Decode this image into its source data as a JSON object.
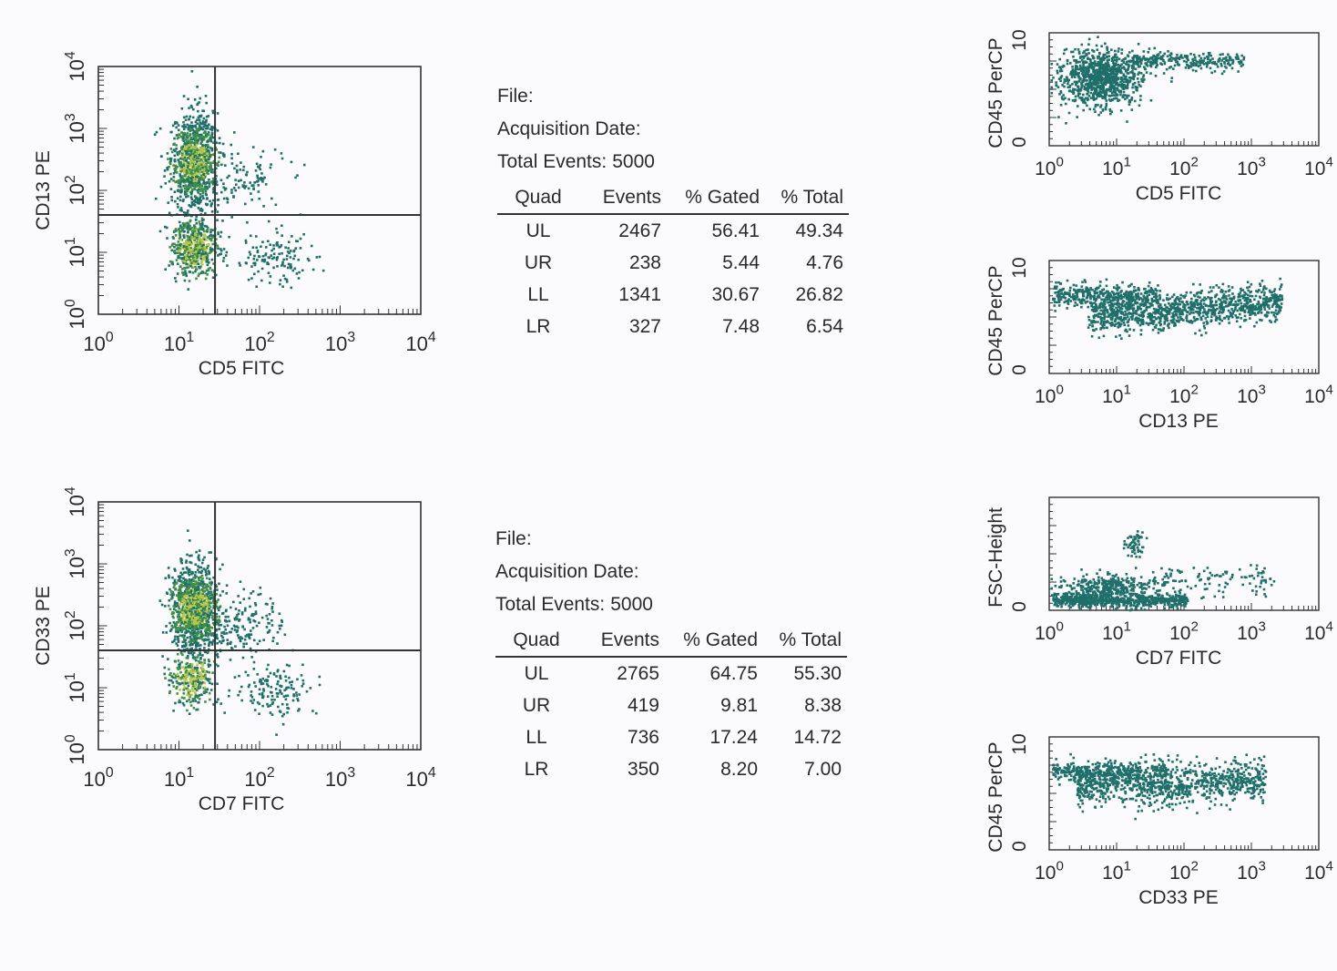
{
  "panels": [
    {
      "file_label": "File:",
      "date_label": "Acquisition Date:",
      "events_label": "Total Events:",
      "events_value": "5000",
      "table": {
        "headers": [
          "Quad",
          "Events",
          "% Gated",
          "% Total"
        ],
        "rows": [
          [
            "UL",
            "2467",
            "56.41",
            "49.34"
          ],
          [
            "UR",
            "238",
            "5.44",
            "4.76"
          ],
          [
            "LL",
            "1341",
            "30.67",
            "26.82"
          ],
          [
            "LR",
            "327",
            "7.48",
            "6.54"
          ]
        ]
      }
    },
    {
      "file_label": "File:",
      "date_label": "Acquisition Date:",
      "events_label": "Total Events:",
      "events_value": "5000",
      "table": {
        "headers": [
          "Quad",
          "Events",
          "% Gated",
          "% Total"
        ],
        "rows": [
          [
            "UL",
            "2765",
            "64.75",
            "55.30"
          ],
          [
            "UR",
            "419",
            "9.81",
            "8.38"
          ],
          [
            "LL",
            "736",
            "17.24",
            "14.72"
          ],
          [
            "LR",
            "350",
            "8.20",
            "7.00"
          ]
        ]
      }
    }
  ],
  "colors": {
    "dot_dark": "#1f6f6a",
    "dot_green": "#3f8f47",
    "dot_yellow": "#b8c94a",
    "axis": "#333333"
  },
  "chart_data": [
    {
      "id": "cd13-vs-cd5",
      "type": "scatter",
      "xlabel": "CD5 FITC",
      "ylabel": "CD13 PE",
      "xscale": "log",
      "yscale": "log",
      "xlim": [
        1,
        10000
      ],
      "ylim": [
        1,
        10000
      ],
      "xticks": [
        "10^0",
        "10^1",
        "10^2",
        "10^3",
        "10^4"
      ],
      "yticks": [
        "10^0",
        "10^1",
        "10^2",
        "10^3",
        "10^4"
      ],
      "quadrant_x": 28,
      "quadrant_y": 40,
      "clusters": [
        {
          "quadrant": "UL",
          "events": 2467,
          "center": [
            15,
            300
          ],
          "spread": [
            1.8,
            5
          ]
        },
        {
          "quadrant": "UR",
          "events": 238,
          "center": [
            60,
            150
          ],
          "spread": [
            3,
            3
          ]
        },
        {
          "quadrant": "LL",
          "events": 1341,
          "center": [
            15,
            12
          ],
          "spread": [
            1.8,
            2.5
          ]
        },
        {
          "quadrant": "LR",
          "events": 327,
          "center": [
            150,
            8
          ],
          "spread": [
            3,
            2.5
          ]
        }
      ]
    },
    {
      "id": "cd33-vs-cd7",
      "type": "scatter",
      "xlabel": "CD7 FITC",
      "ylabel": "CD33 PE",
      "xscale": "log",
      "yscale": "log",
      "xlim": [
        1,
        10000
      ],
      "ylim": [
        1,
        10000
      ],
      "xticks": [
        "10^0",
        "10^1",
        "10^2",
        "10^3",
        "10^4"
      ],
      "yticks": [
        "10^0",
        "10^1",
        "10^2",
        "10^3",
        "10^4"
      ],
      "quadrant_x": 28,
      "quadrant_y": 40,
      "clusters": [
        {
          "quadrant": "UL",
          "events": 2765,
          "center": [
            15,
            200
          ],
          "spread": [
            1.8,
            4
          ]
        },
        {
          "quadrant": "UR",
          "events": 419,
          "center": [
            60,
            120
          ],
          "spread": [
            3,
            3
          ]
        },
        {
          "quadrant": "LL",
          "events": 736,
          "center": [
            14,
            15
          ],
          "spread": [
            1.8,
            2.5
          ]
        },
        {
          "quadrant": "LR",
          "events": 350,
          "center": [
            150,
            10
          ],
          "spread": [
            3,
            2.5
          ]
        }
      ]
    },
    {
      "id": "cd45-vs-cd5",
      "type": "scatter",
      "xlabel": "CD5 FITC",
      "ylabel": "CD45 PerCP",
      "xscale": "log",
      "xlim": [
        1,
        10000
      ],
      "xticks": [
        "10^0",
        "10^1",
        "10^2",
        "10^3",
        "10^4"
      ],
      "yticks": [
        "0",
        "10"
      ],
      "ylim": [
        0,
        10
      ]
    },
    {
      "id": "cd45-vs-cd13",
      "type": "scatter",
      "xlabel": "CD13 PE",
      "ylabel": "CD45 PerCP",
      "xscale": "log",
      "xlim": [
        1,
        10000
      ],
      "xticks": [
        "10^0",
        "10^1",
        "10^2",
        "10^3",
        "10^4"
      ],
      "yticks": [
        "0",
        "10"
      ],
      "ylim": [
        0,
        10
      ]
    },
    {
      "id": "fsc-vs-cd7",
      "type": "scatter",
      "xlabel": "CD7 FITC",
      "ylabel": "FSC-Height",
      "xscale": "log",
      "xlim": [
        1,
        10000
      ],
      "xticks": [
        "10^0",
        "10^1",
        "10^2",
        "10^3",
        "10^4"
      ],
      "yticks": [
        "0"
      ]
    },
    {
      "id": "cd45-vs-cd33",
      "type": "scatter",
      "xlabel": "CD33 PE",
      "ylabel": "CD45 PerCP",
      "xscale": "log",
      "xlim": [
        1,
        10000
      ],
      "xticks": [
        "10^0",
        "10^1",
        "10^2",
        "10^3",
        "10^4"
      ],
      "yticks": [
        "0",
        "10"
      ],
      "ylim": [
        0,
        10
      ]
    }
  ]
}
